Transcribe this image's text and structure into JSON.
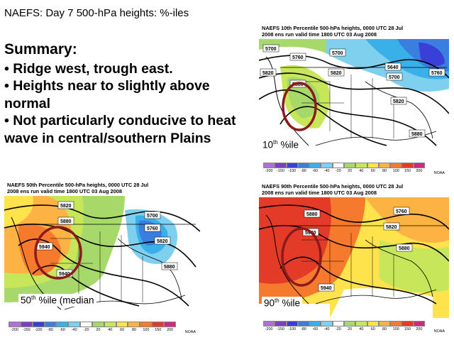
{
  "slide": {
    "title": "NAEFS:  Day 7 500-hPa heights: %-iles"
  },
  "summary": {
    "heading": "Summary:",
    "bullets": [
      "• Ridge west, trough east.",
      "• Heights near to slightly above normal",
      "• Not particularly conducive to heat wave in central/southern Plains"
    ]
  },
  "colorbar": {
    "ticks": [
      "-200",
      "-150",
      "-100",
      "-80",
      "-60",
      "-40",
      "-20",
      "20",
      "40",
      "60",
      "80",
      "100",
      "150",
      "200"
    ],
    "colors": [
      "#b06fd8",
      "#7b3fc4",
      "#3a3fd8",
      "#3a7fe0",
      "#3ab0e8",
      "#7fd0ef",
      "#ffffff",
      "#a6d96a",
      "#c8e65a",
      "#ffe34d",
      "#fdb244",
      "#f57a2e",
      "#e43a28",
      "#cc2a80"
    ],
    "credit": "NOAA"
  },
  "panels": {
    "p10": {
      "title_line1": "NAEFS 10th Percentile 500-hPa heights, 0000 UTC  28 Jul",
      "title_line2": "2008 ens run valid time 1800 UTC  03 Aug 2008",
      "label_main": "10",
      "label_sup": "th",
      "label_rest": " %ile",
      "contours": [
        "5700",
        "5760",
        "5700",
        "5640",
        "5700",
        "5760",
        "5820",
        "5820",
        "5880",
        "5820",
        "5880"
      ]
    },
    "p50": {
      "title_line1": "NAEFS 50th Percentile 500-hPa heights, 0000 UTC  28 Jul",
      "title_line2": "2008 ens run valid time 1800 UTC  03 Aug 2008",
      "label_main": "50",
      "label_sup": "th",
      "label_rest": " %ile (median",
      "contours": [
        "5820",
        "5880",
        "5700",
        "5760",
        "5940",
        "5820",
        "5940",
        "5880"
      ]
    },
    "p90": {
      "title_line1": "NAEFS 90th Percentile 500-hPa heights, 0000 UTC  28 Jul",
      "title_line2": "2008 ens run valid time 1800 UTC  03 Aug 2008",
      "label_main": "90",
      "label_sup": "th",
      "label_rest": " %ile",
      "contours": [
        "5880",
        "5760",
        "5940",
        "5820",
        "5880",
        "5940"
      ]
    }
  }
}
